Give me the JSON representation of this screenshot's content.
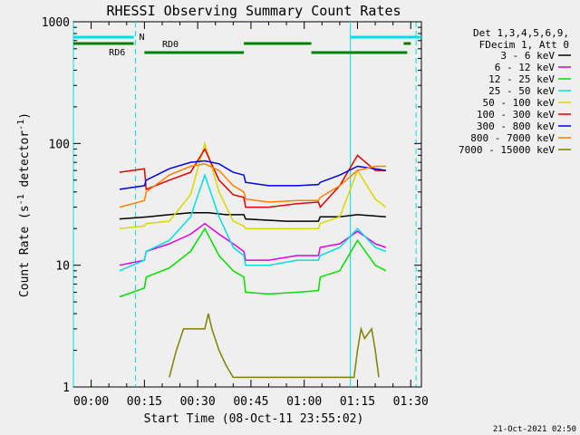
{
  "chart_data": {
    "type": "line",
    "title": "RHESSI Observing Summary Count Rates",
    "xlabel": "Start Time (08-Oct-11 23:55:02)",
    "ylabel_main": "Count Rate (s",
    "ylabel_sup1": "-1",
    "ylabel_mid": " detector",
    "ylabel_sup2": "-1",
    "ylabel_end": ")",
    "y_scale": "log",
    "ylim": [
      1,
      1000
    ],
    "xlim_minutes": [
      -5,
      93
    ],
    "x_ticks": [
      {
        "label": "00:00",
        "min": 0
      },
      {
        "label": "00:15",
        "min": 15
      },
      {
        "label": "00:30",
        "min": 30
      },
      {
        "label": "00:45",
        "min": 45
      },
      {
        "label": "01:00",
        "min": 60
      },
      {
        "label": "01:15",
        "min": 75
      },
      {
        "label": "01:30",
        "min": 90
      }
    ],
    "y_ticks": [
      {
        "label": "1",
        "value": 1
      },
      {
        "label": "10",
        "value": 10
      },
      {
        "label": "100",
        "value": 100
      },
      {
        "label": "1000",
        "value": 1000
      }
    ],
    "legend_header": [
      "Det 1,3,4,5,6,9,",
      "FDecim 1, Att 0"
    ],
    "legend_position": "right",
    "series": [
      {
        "name": "3 - 6 keV",
        "color": "#000000",
        "points": [
          [
            8,
            24
          ],
          [
            16,
            25
          ],
          [
            22,
            26
          ],
          [
            28,
            27
          ],
          [
            33,
            27
          ],
          [
            38,
            26
          ],
          [
            43,
            26
          ],
          [
            43.5,
            24
          ],
          [
            55,
            23
          ],
          [
            64,
            23
          ],
          [
            64.5,
            25
          ],
          [
            70,
            25
          ],
          [
            75,
            26
          ],
          [
            83,
            25
          ]
        ]
      },
      {
        "name": "6 - 12 keV",
        "color": "#e000e0",
        "points": [
          [
            8,
            10
          ],
          [
            15,
            11
          ],
          [
            15.5,
            13
          ],
          [
            22,
            15
          ],
          [
            28,
            18
          ],
          [
            32,
            22
          ],
          [
            36,
            18
          ],
          [
            40,
            15
          ],
          [
            43,
            13
          ],
          [
            43.5,
            11
          ],
          [
            50,
            11
          ],
          [
            58,
            12
          ],
          [
            64,
            12
          ],
          [
            64.5,
            14
          ],
          [
            70,
            15
          ],
          [
            75,
            19
          ],
          [
            80,
            15
          ],
          [
            83,
            14
          ]
        ]
      },
      {
        "name": "12 - 25 keV",
        "color": "#00e000",
        "points": [
          [
            8,
            5.5
          ],
          [
            15,
            6.5
          ],
          [
            15.5,
            8
          ],
          [
            22,
            9.5
          ],
          [
            28,
            13
          ],
          [
            32,
            20
          ],
          [
            36,
            12
          ],
          [
            40,
            9
          ],
          [
            43,
            8
          ],
          [
            43.5,
            6
          ],
          [
            50,
            5.8
          ],
          [
            58,
            6
          ],
          [
            64,
            6.2
          ],
          [
            64.5,
            8
          ],
          [
            70,
            9
          ],
          [
            75,
            16
          ],
          [
            80,
            10
          ],
          [
            83,
            9
          ]
        ]
      },
      {
        "name": "25 - 50 keV",
        "color": "#00e0e0",
        "points": [
          [
            8,
            9
          ],
          [
            15,
            11
          ],
          [
            15.5,
            13
          ],
          [
            22,
            16
          ],
          [
            28,
            25
          ],
          [
            32,
            55
          ],
          [
            36,
            25
          ],
          [
            40,
            14
          ],
          [
            43,
            12
          ],
          [
            43.5,
            10
          ],
          [
            50,
            10
          ],
          [
            58,
            11
          ],
          [
            64,
            11
          ],
          [
            64.5,
            12
          ],
          [
            70,
            14
          ],
          [
            75,
            20
          ],
          [
            80,
            14
          ],
          [
            83,
            13
          ]
        ]
      },
      {
        "name": "50 - 100 keV",
        "color": "#d8d800",
        "points": [
          [
            8,
            20
          ],
          [
            15,
            21
          ],
          [
            15.5,
            22
          ],
          [
            22,
            23
          ],
          [
            28,
            38
          ],
          [
            32,
            100
          ],
          [
            36,
            40
          ],
          [
            40,
            23
          ],
          [
            43,
            21
          ],
          [
            43.5,
            20
          ],
          [
            50,
            20
          ],
          [
            58,
            20
          ],
          [
            64,
            20
          ],
          [
            64.5,
            22
          ],
          [
            70,
            25
          ],
          [
            75,
            60
          ],
          [
            80,
            35
          ],
          [
            83,
            30
          ]
        ]
      },
      {
        "name": "100 - 300 keV",
        "color": "#e00000",
        "points": [
          [
            8,
            58
          ],
          [
            15,
            62
          ],
          [
            15.5,
            42
          ],
          [
            22,
            50
          ],
          [
            28,
            58
          ],
          [
            32,
            90
          ],
          [
            36,
            50
          ],
          [
            40,
            38
          ],
          [
            43,
            36
          ],
          [
            43.5,
            30
          ],
          [
            50,
            30
          ],
          [
            58,
            32
          ],
          [
            64,
            33
          ],
          [
            64.5,
            30
          ],
          [
            70,
            45
          ],
          [
            75,
            80
          ],
          [
            80,
            60
          ],
          [
            83,
            60
          ]
        ]
      },
      {
        "name": "300 - 800 keV",
        "color": "#0000e0",
        "points": [
          [
            8,
            42
          ],
          [
            15,
            45
          ],
          [
            15.5,
            50
          ],
          [
            22,
            62
          ],
          [
            28,
            70
          ],
          [
            32,
            72
          ],
          [
            36,
            68
          ],
          [
            40,
            58
          ],
          [
            43,
            55
          ],
          [
            43.5,
            48
          ],
          [
            50,
            45
          ],
          [
            58,
            45
          ],
          [
            64,
            46
          ],
          [
            64.5,
            48
          ],
          [
            70,
            55
          ],
          [
            75,
            65
          ],
          [
            80,
            62
          ],
          [
            83,
            60
          ]
        ]
      },
      {
        "name": "800 - 7000 keV",
        "color": "#ff8000",
        "points": [
          [
            8,
            30
          ],
          [
            15,
            34
          ],
          [
            15.5,
            40
          ],
          [
            22,
            55
          ],
          [
            28,
            65
          ],
          [
            32,
            68
          ],
          [
            36,
            60
          ],
          [
            40,
            45
          ],
          [
            43,
            40
          ],
          [
            43.5,
            35
          ],
          [
            50,
            33
          ],
          [
            58,
            34
          ],
          [
            64,
            34
          ],
          [
            64.5,
            36
          ],
          [
            70,
            45
          ],
          [
            75,
            60
          ],
          [
            80,
            65
          ],
          [
            83,
            65
          ]
        ]
      },
      {
        "name": "7000 - 15000 keV",
        "color": "#808000",
        "points": [
          [
            22,
            1.2
          ],
          [
            24,
            2
          ],
          [
            26,
            3
          ],
          [
            28,
            3
          ],
          [
            30,
            3
          ],
          [
            32,
            3
          ],
          [
            33,
            4
          ],
          [
            34,
            3
          ],
          [
            36,
            2
          ],
          [
            38,
            1.5
          ],
          [
            40,
            1.2
          ],
          [
            74,
            1.2
          ],
          [
            75,
            2
          ],
          [
            76,
            3
          ],
          [
            77,
            2.5
          ],
          [
            79,
            3
          ],
          [
            80,
            2
          ],
          [
            81,
            1.2
          ]
        ]
      }
    ],
    "status_bars": {
      "N_label": "N",
      "RD0_label": "RD0",
      "RD6_label": "RD6",
      "night_color": "#00e0e0",
      "flag_color": "#008000",
      "night_segments": [
        [
          -5,
          12
        ],
        [
          73,
          93
        ]
      ],
      "rd0_segments": [
        [
          -5,
          12
        ],
        [
          43,
          62
        ],
        [
          88,
          90
        ]
      ],
      "rd6_segments": [
        [
          15,
          43
        ],
        [
          62,
          89
        ]
      ],
      "vertical_solid_min": [
        -5,
        73
      ],
      "vertical_dashed_min": [
        12.5,
        91.5
      ]
    },
    "timestamp": "21-Oct-2021 02:50"
  }
}
